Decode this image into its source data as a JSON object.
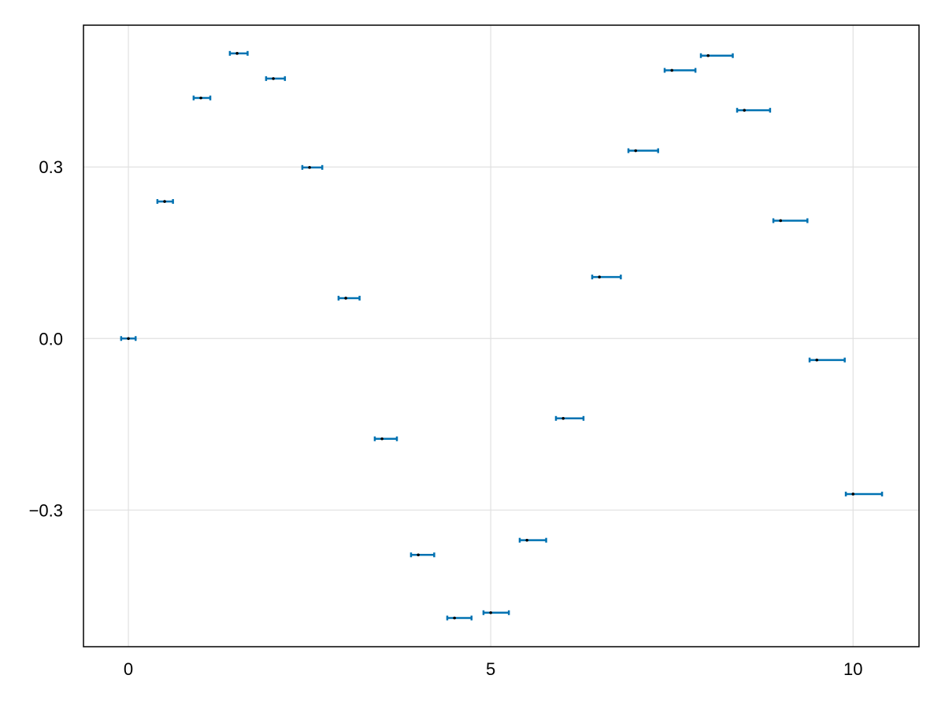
{
  "chart_data": {
    "type": "errorbar",
    "orientation": "horizontal",
    "title": "",
    "xlabel": "",
    "ylabel": "",
    "x": [
      0,
      0.5,
      1,
      1.5,
      2,
      2.5,
      3,
      3.5,
      4,
      4.5,
      5,
      5.5,
      6,
      6.5,
      7,
      7.5,
      8,
      8.5,
      9,
      9.5,
      10
    ],
    "y": [
      0,
      0.2397,
      0.4207,
      0.4987,
      0.4546,
      0.2992,
      0.0706,
      -0.1754,
      -0.3784,
      -0.4888,
      -0.4795,
      -0.3528,
      -0.1397,
      0.1076,
      0.3285,
      0.469,
      0.4947,
      0.3992,
      0.2061,
      -0.0376,
      -0.272
    ],
    "x_error_low": [
      0.1,
      0.1,
      0.1,
      0.1,
      0.1,
      0.1,
      0.1,
      0.1,
      0.1,
      0.1,
      0.1,
      0.1,
      0.1,
      0.1,
      0.1,
      0.1,
      0.1,
      0.1,
      0.1,
      0.1,
      0.1
    ],
    "x_error_high": [
      0.1,
      0.115,
      0.13,
      0.145,
      0.16,
      0.175,
      0.19,
      0.205,
      0.22,
      0.235,
      0.25,
      0.265,
      0.28,
      0.295,
      0.31,
      0.325,
      0.34,
      0.355,
      0.37,
      0.385,
      0.4
    ],
    "xlim": [
      -0.62,
      10.91
    ],
    "ylim": [
      -0.539,
      0.548
    ],
    "xticks": [
      "0",
      "5",
      "10"
    ],
    "xtick_values": [
      0,
      5,
      10
    ],
    "yticks": [
      "−0.3",
      "0.0",
      "0.3"
    ],
    "ytick_values": [
      -0.3,
      0,
      0.3
    ],
    "grid": true,
    "colors": {
      "errorbar": "#0072b2",
      "point": "#000000",
      "grid": "#e0e0e0"
    }
  }
}
